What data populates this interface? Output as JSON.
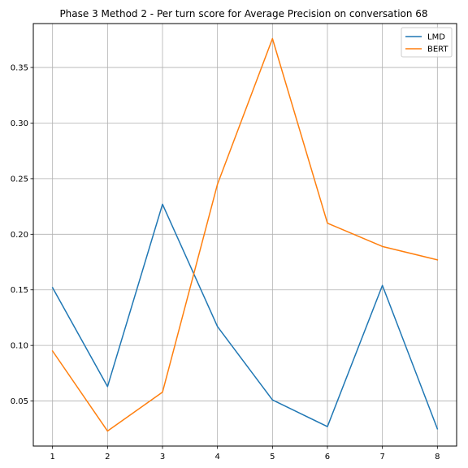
{
  "chart_data": {
    "type": "line",
    "title": "Phase 3 Method 2 - Per turn score for Average Precision on conversation 68",
    "xlabel": "",
    "ylabel": "",
    "x": [
      1,
      2,
      3,
      4,
      5,
      6,
      7,
      8
    ],
    "xlim": [
      0.65,
      8.35
    ],
    "ylim": [
      0.0095,
      0.3895
    ],
    "x_ticks": [
      "1",
      "2",
      "3",
      "4",
      "5",
      "6",
      "7",
      "8"
    ],
    "y_ticks": [
      "0.05",
      "0.10",
      "0.15",
      "0.20",
      "0.25",
      "0.30",
      "0.35"
    ],
    "grid": true,
    "legend_position": "top-right",
    "series": [
      {
        "name": "LMD",
        "color": "#1f77b4",
        "values": [
          0.152,
          0.063,
          0.227,
          0.117,
          0.051,
          0.027,
          0.154,
          0.025
        ]
      },
      {
        "name": "BERT",
        "color": "#ff7f0e",
        "values": [
          0.095,
          0.023,
          0.058,
          0.245,
          0.376,
          0.21,
          0.189,
          0.177
        ]
      }
    ]
  }
}
